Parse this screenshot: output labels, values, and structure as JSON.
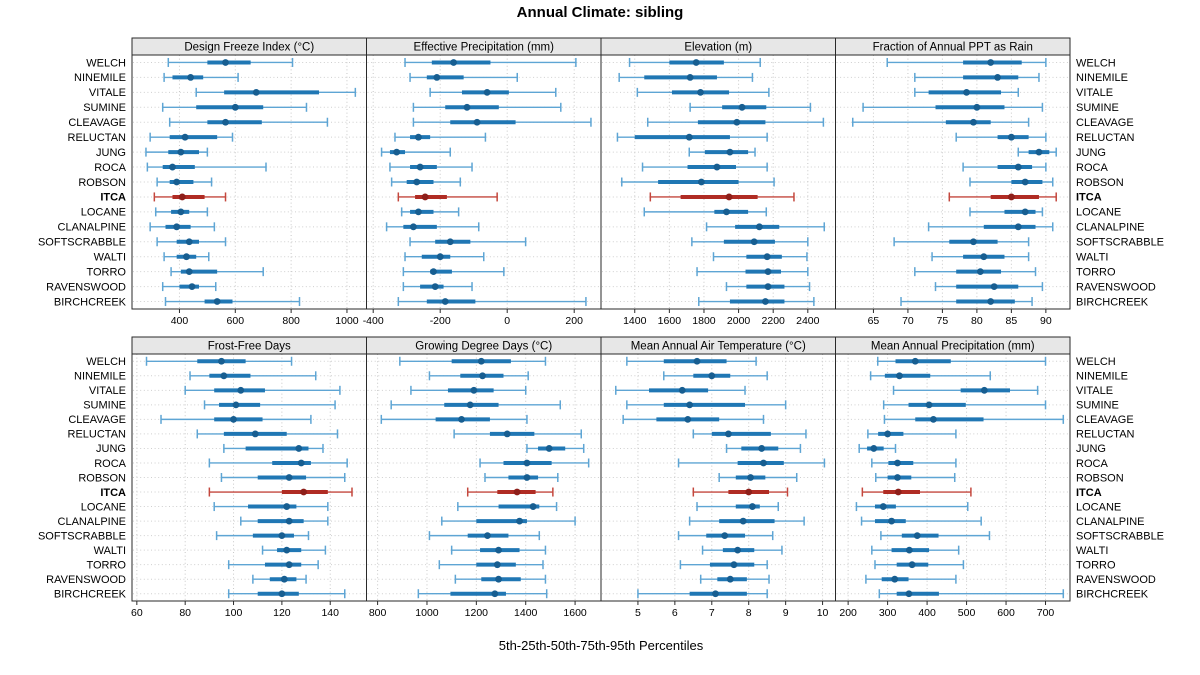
{
  "title": "Annual Climate: sibling",
  "footer": "5th-25th-50th-75th-95th Percentiles",
  "highlight_site": "ITCA",
  "colors": {
    "normal_thin": "#5ea5d4",
    "normal_thick": "#2077b4",
    "normal_dot": "#175e91",
    "highlight_thin": "#c4473d",
    "highlight_thick": "#b02c24",
    "highlight_dot": "#8e1f1a",
    "strip_bg": "#e7e7e7",
    "panel_border": "#2a2a2a",
    "grid": "#c8c8c8",
    "row_guide": "#cfcfcf",
    "text": "#000000"
  },
  "sites": [
    "WELCH",
    "NINEMILE",
    "VITALE",
    "SUMINE",
    "CLEAVAGE",
    "RELUCTAN",
    "JUNG",
    "ROCA",
    "ROBSON",
    "ITCA",
    "LOCANE",
    "CLANALPINE",
    "SOFTSCRABBLE",
    "WALTI",
    "TORRO",
    "RAVENSWOOD",
    "BIRCHCREEK"
  ],
  "chart_data": {
    "type": "dotplot",
    "variant": "percentile-trellis",
    "title": "Annual Climate: sibling",
    "xlabel": "5th-25th-50th-75th-95th Percentiles",
    "percentile_labels": [
      5,
      25,
      50,
      75,
      95
    ],
    "grid": true,
    "panels": [
      {
        "title": "Design Freeze Index (°C)",
        "xlim": [
          230,
          1070
        ],
        "ticks": [
          400,
          600,
          800,
          1000
        ],
        "values": [
          [
            360,
            500,
            565,
            655,
            805
          ],
          [
            345,
            375,
            440,
            485,
            610
          ],
          [
            460,
            560,
            675,
            900,
            1030
          ],
          [
            340,
            460,
            600,
            700,
            855
          ],
          [
            365,
            500,
            565,
            695,
            930
          ],
          [
            295,
            365,
            420,
            535,
            590
          ],
          [
            280,
            360,
            405,
            470,
            500
          ],
          [
            285,
            340,
            375,
            455,
            710
          ],
          [
            320,
            365,
            390,
            450,
            515
          ],
          [
            310,
            375,
            410,
            490,
            565
          ],
          [
            315,
            370,
            405,
            435,
            500
          ],
          [
            295,
            350,
            390,
            440,
            525
          ],
          [
            320,
            390,
            435,
            470,
            565
          ],
          [
            345,
            390,
            425,
            460,
            505
          ],
          [
            370,
            405,
            435,
            535,
            700
          ],
          [
            340,
            400,
            445,
            470,
            530
          ],
          [
            350,
            490,
            535,
            590,
            830
          ]
        ]
      },
      {
        "title": "Effective Precipitation (mm)",
        "xlim": [
          -420,
          280
        ],
        "ticks": [
          -400,
          -200,
          0,
          200
        ],
        "values": [
          [
            -305,
            -225,
            -160,
            -50,
            205
          ],
          [
            -290,
            -240,
            -210,
            -130,
            30
          ],
          [
            -230,
            -135,
            -60,
            5,
            145
          ],
          [
            -280,
            -185,
            -120,
            -25,
            160
          ],
          [
            -280,
            -170,
            -90,
            25,
            250
          ],
          [
            -335,
            -290,
            -265,
            -230,
            -65
          ],
          [
            -375,
            -350,
            -330,
            -305,
            -170
          ],
          [
            -350,
            -290,
            -260,
            -210,
            -105
          ],
          [
            -345,
            -300,
            -270,
            -220,
            -140
          ],
          [
            -325,
            -275,
            -245,
            -180,
            -30
          ],
          [
            -315,
            -290,
            -265,
            -220,
            -145
          ],
          [
            -360,
            -310,
            -280,
            -210,
            -85
          ],
          [
            -290,
            -215,
            -170,
            -110,
            55
          ],
          [
            -305,
            -255,
            -200,
            -170,
            -70
          ],
          [
            -310,
            -230,
            -220,
            -165,
            -10
          ],
          [
            -310,
            -260,
            -215,
            -190,
            -105
          ],
          [
            -325,
            -240,
            -185,
            -95,
            235
          ]
        ]
      },
      {
        "title": "Elevation (m)",
        "xlim": [
          1205,
          2560
        ],
        "ticks": [
          1400,
          1600,
          1800,
          2000,
          2200,
          2400
        ],
        "values": [
          [
            1370,
            1600,
            1755,
            1915,
            2125
          ],
          [
            1310,
            1455,
            1720,
            1875,
            2080
          ],
          [
            1415,
            1615,
            1780,
            1945,
            2175
          ],
          [
            1720,
            1905,
            2020,
            2160,
            2415
          ],
          [
            1475,
            1765,
            1990,
            2155,
            2490
          ],
          [
            1300,
            1400,
            1715,
            1950,
            2165
          ],
          [
            1715,
            1805,
            1950,
            2055,
            2095
          ],
          [
            1445,
            1705,
            1875,
            1985,
            2165
          ],
          [
            1325,
            1535,
            1785,
            2000,
            2205
          ],
          [
            1490,
            1665,
            1945,
            2110,
            2320
          ],
          [
            1455,
            1860,
            1930,
            2055,
            2160
          ],
          [
            1815,
            1980,
            2120,
            2235,
            2495
          ],
          [
            1730,
            1915,
            2090,
            2210,
            2400
          ],
          [
            1855,
            2045,
            2165,
            2250,
            2395
          ],
          [
            1760,
            2040,
            2170,
            2245,
            2400
          ],
          [
            1930,
            2045,
            2170,
            2265,
            2410
          ],
          [
            1770,
            1950,
            2155,
            2265,
            2435
          ]
        ]
      },
      {
        "title": "Fraction of Annual PPT as Rain",
        "xlim": [
          59.5,
          93.5
        ],
        "ticks": [
          65,
          70,
          75,
          80,
          85,
          90
        ],
        "values": [
          [
            67,
            78,
            82,
            86.5,
            90
          ],
          [
            71,
            78,
            83,
            86,
            89
          ],
          [
            71,
            73,
            78.5,
            83.5,
            86
          ],
          [
            63.5,
            74,
            80,
            84,
            89.5
          ],
          [
            62,
            75.5,
            79.5,
            82,
            87.5
          ],
          [
            77,
            83,
            85,
            87.5,
            90
          ],
          [
            86,
            87.5,
            89,
            90.5,
            91.5
          ],
          [
            78,
            83,
            86,
            88,
            90
          ],
          [
            79,
            85,
            87,
            89.5,
            91
          ],
          [
            76,
            82,
            85,
            89,
            91.5
          ],
          [
            79,
            84,
            87,
            88.5,
            89.5
          ],
          [
            73,
            81,
            86,
            88.5,
            91
          ],
          [
            68,
            76,
            79.5,
            83,
            87.5
          ],
          [
            73.5,
            78,
            81,
            84,
            87.5
          ],
          [
            71,
            77,
            80.5,
            83.5,
            88.5
          ],
          [
            74,
            77,
            82.5,
            86,
            89.5
          ],
          [
            69,
            77,
            82,
            85.5,
            88
          ]
        ]
      },
      {
        "title": "Frost-Free Days",
        "xlim": [
          58,
          155
        ],
        "ticks": [
          60,
          80,
          100,
          120,
          140
        ],
        "values": [
          [
            64,
            85,
            95,
            105,
            124
          ],
          [
            82,
            90,
            96,
            107,
            134
          ],
          [
            80,
            92,
            103,
            113,
            144
          ],
          [
            88,
            94,
            101,
            111,
            142
          ],
          [
            70,
            92,
            100,
            112,
            132
          ],
          [
            85,
            96,
            109,
            122,
            143
          ],
          [
            96,
            105,
            127,
            131,
            137
          ],
          [
            90,
            116,
            128,
            132,
            147
          ],
          [
            95,
            110,
            123,
            130,
            146
          ],
          [
            90,
            120,
            129,
            139,
            149
          ],
          [
            92,
            106,
            122,
            126,
            139
          ],
          [
            103,
            110,
            123,
            129,
            139
          ],
          [
            93,
            108,
            120,
            125,
            131
          ],
          [
            112,
            118,
            122,
            128,
            138
          ],
          [
            98,
            113,
            123,
            128,
            135
          ],
          [
            108,
            115,
            121,
            126,
            130
          ],
          [
            98,
            110,
            120,
            127,
            146
          ]
        ]
      },
      {
        "title": "Growing Degree Days (°C)",
        "xlim": [
          755,
          1705
        ],
        "ticks": [
          800,
          1000,
          1200,
          1400,
          1600
        ],
        "values": [
          [
            890,
            1100,
            1220,
            1340,
            1480
          ],
          [
            1010,
            1135,
            1225,
            1310,
            1410
          ],
          [
            935,
            1085,
            1190,
            1270,
            1400
          ],
          [
            855,
            1070,
            1175,
            1290,
            1540
          ],
          [
            815,
            1035,
            1140,
            1255,
            1405
          ],
          [
            1110,
            1255,
            1325,
            1435,
            1625
          ],
          [
            1405,
            1450,
            1495,
            1560,
            1635
          ],
          [
            1215,
            1310,
            1405,
            1505,
            1655
          ],
          [
            1235,
            1330,
            1405,
            1450,
            1530
          ],
          [
            1165,
            1285,
            1365,
            1440,
            1510
          ],
          [
            1125,
            1290,
            1430,
            1455,
            1525
          ],
          [
            1060,
            1200,
            1375,
            1405,
            1600
          ],
          [
            1010,
            1165,
            1245,
            1330,
            1455
          ],
          [
            1100,
            1215,
            1290,
            1375,
            1480
          ],
          [
            1050,
            1200,
            1285,
            1360,
            1470
          ],
          [
            1115,
            1220,
            1290,
            1380,
            1480
          ],
          [
            965,
            1095,
            1275,
            1320,
            1485
          ]
        ]
      },
      {
        "title": "Mean Annual Air Temperature (°C)",
        "xlim": [
          4.0,
          10.35
        ],
        "ticks": [
          5,
          6,
          7,
          8,
          9,
          10
        ],
        "values": [
          [
            4.7,
            5.7,
            6.6,
            7.4,
            8.2
          ],
          [
            5.7,
            6.5,
            7.0,
            7.5,
            8.5
          ],
          [
            4.4,
            5.3,
            6.2,
            6.9,
            7.9
          ],
          [
            4.7,
            5.7,
            6.4,
            7.9,
            9.0
          ],
          [
            4.6,
            5.5,
            6.35,
            7.2,
            8.4
          ],
          [
            6.5,
            7.0,
            7.45,
            8.6,
            9.55
          ],
          [
            7.4,
            7.8,
            8.35,
            8.8,
            9.4
          ],
          [
            6.1,
            7.7,
            8.4,
            8.95,
            10.05
          ],
          [
            7.2,
            7.65,
            8.05,
            8.45,
            9.3
          ],
          [
            6.5,
            7.45,
            8.0,
            8.55,
            9.05
          ],
          [
            6.6,
            7.65,
            8.1,
            8.3,
            8.8
          ],
          [
            6.4,
            7.2,
            7.85,
            8.7,
            9.5
          ],
          [
            6.1,
            6.85,
            7.35,
            7.9,
            8.65
          ],
          [
            6.75,
            7.3,
            7.7,
            8.15,
            8.9
          ],
          [
            6.15,
            6.95,
            7.6,
            8.15,
            8.5
          ],
          [
            6.7,
            7.15,
            7.5,
            7.95,
            8.55
          ],
          [
            5.0,
            6.4,
            7.1,
            7.95,
            8.5
          ]
        ]
      },
      {
        "title": "Mean Annual Precipitation (mm)",
        "xlim": [
          168,
          762
        ],
        "ticks": [
          200,
          300,
          400,
          500,
          600,
          700
        ],
        "values": [
          [
            275,
            320,
            370,
            460,
            700
          ],
          [
            257,
            293,
            330,
            408,
            560
          ],
          [
            315,
            485,
            545,
            610,
            680
          ],
          [
            290,
            353,
            405,
            498,
            700
          ],
          [
            292,
            370,
            416,
            543,
            745
          ],
          [
            250,
            276,
            300,
            340,
            473
          ],
          [
            228,
            248,
            265,
            290,
            320
          ],
          [
            260,
            302,
            325,
            365,
            473
          ],
          [
            270,
            300,
            325,
            360,
            470
          ],
          [
            236,
            289,
            327,
            382,
            511
          ],
          [
            221,
            268,
            289,
            321,
            503
          ],
          [
            234,
            268,
            310,
            346,
            537
          ],
          [
            283,
            336,
            375,
            429,
            558
          ],
          [
            260,
            310,
            355,
            405,
            480
          ],
          [
            268,
            323,
            362,
            403,
            492
          ],
          [
            245,
            285,
            318,
            353,
            473
          ],
          [
            279,
            323,
            354,
            430,
            745
          ]
        ]
      }
    ]
  }
}
